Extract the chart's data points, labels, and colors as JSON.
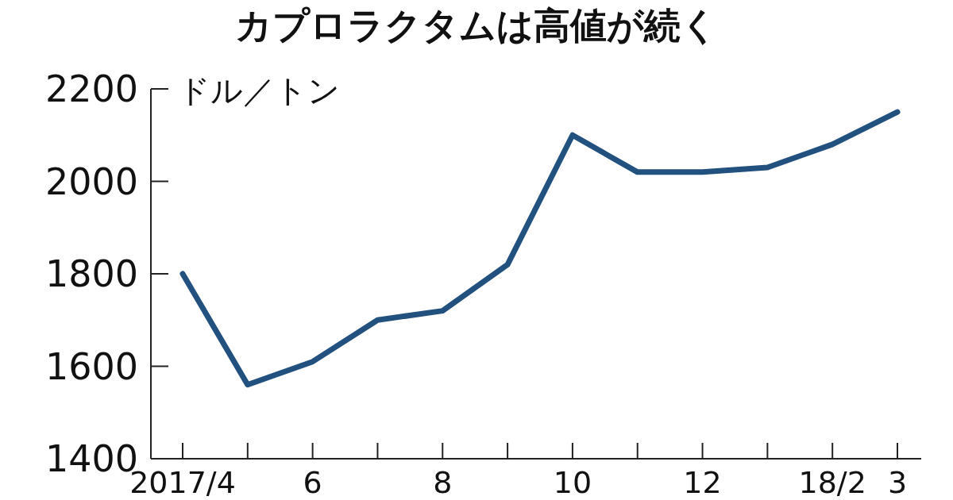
{
  "chart_data": {
    "type": "line",
    "title": "カプロラクタムは高値が続く",
    "ylabel": "ドル／トン",
    "categories": [
      "2017/4",
      null,
      "6",
      null,
      "8",
      null,
      "10",
      null,
      "12",
      null,
      "18/2",
      "3"
    ],
    "series": [
      {
        "color": "#22507f",
        "values": [
          1800,
          1560,
          1610,
          1700,
          1720,
          1820,
          2100,
          2020,
          2020,
          2030,
          2080,
          2150
        ]
      }
    ],
    "ylim": [
      1400,
      2200
    ],
    "yticks": [
      1400,
      1600,
      1800,
      2000,
      2200
    ]
  }
}
